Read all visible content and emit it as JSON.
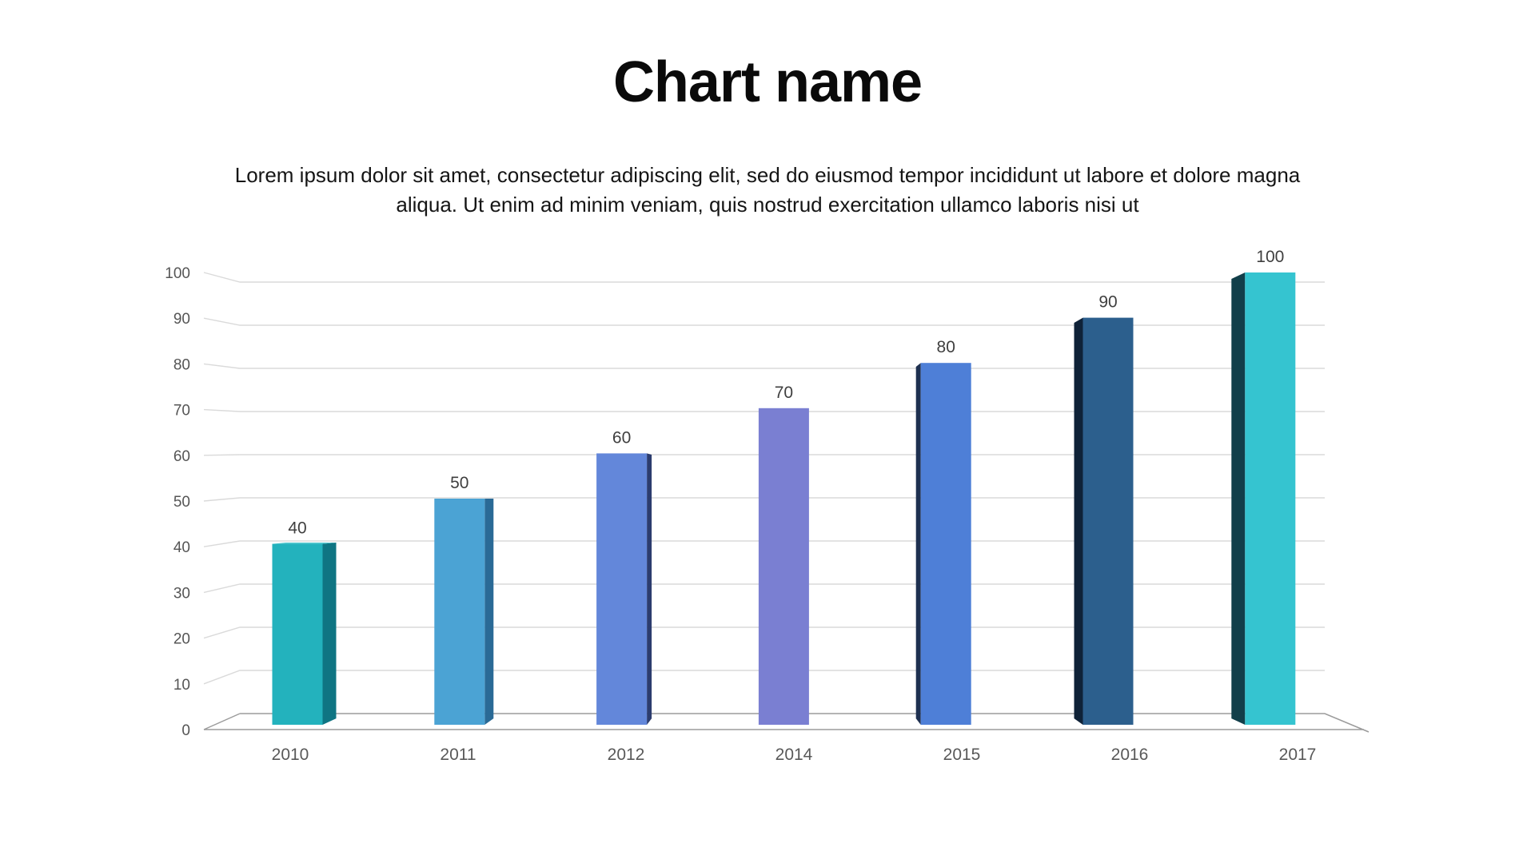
{
  "slide": {
    "title": "Chart name",
    "subtitle_lines": [
      "Lorem ipsum dolor sit amet, consectetur adipiscing elit, sed do eiusmod tempor incididunt ut labore et dolore magna",
      "aliqua. Ut enim ad minim veniam, quis nostrud exercitation ullamco laboris nisi ut"
    ]
  },
  "chart_data": {
    "type": "bar",
    "style": "3d-perspective-column",
    "title": "Chart name",
    "categories": [
      "2010",
      "2011",
      "2012",
      "2014",
      "2015",
      "2016",
      "2017"
    ],
    "values": [
      40,
      50,
      60,
      70,
      80,
      90,
      100
    ],
    "series": [
      {
        "name": "values",
        "values": [
          40,
          50,
          60,
          70,
          80,
          90,
          100
        ]
      }
    ],
    "data_labels_shown": true,
    "xlabel": "",
    "ylabel": "",
    "ylim": [
      0,
      100
    ],
    "y_step": 10,
    "y_tick_labels": [
      "0",
      "10",
      "20",
      "30",
      "40",
      "50",
      "60",
      "70",
      "80",
      "90",
      "100"
    ],
    "grid": true,
    "legend": false,
    "bar_colors": [
      {
        "front": "#23b2bd",
        "side": "#0f7583",
        "top": "#4cc4cd"
      },
      {
        "front": "#4ba3d4",
        "side": "#2a6a96",
        "top": null
      },
      {
        "front": "#6387da",
        "side": "#2c3c6e",
        "top": null
      },
      {
        "front": "#7a7fd2",
        "side": "#44489c",
        "top": null
      },
      {
        "front": "#4e7fd7",
        "side": "#1e3050",
        "top": null
      },
      {
        "front": "#2c5f8d",
        "side": "#0f2238",
        "top": null
      },
      {
        "front": "#35c4d0",
        "side": "#123f4a",
        "top": null
      }
    ],
    "axis_colors": {
      "gridline": "#dadada",
      "baseline": "#9b9b9b",
      "tick_text": "#555555",
      "category_text": "#595959",
      "data_label_text": "#3f3f3f"
    }
  }
}
